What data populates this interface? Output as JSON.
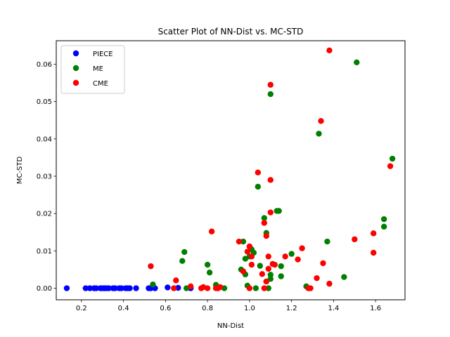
{
  "chart_data": {
    "type": "scatter",
    "title": "Scatter Plot of NN-Dist vs. MC-STD",
    "xlabel": "NN-Dist",
    "ylabel": "MC-STD",
    "xlim": [
      0.08,
      1.74
    ],
    "ylim": [
      -0.0031,
      0.0663
    ],
    "xticks": [
      0.2,
      0.4,
      0.6,
      0.8,
      1.0,
      1.2,
      1.4,
      1.6
    ],
    "xtick_labels": [
      "0.2",
      "0.4",
      "0.6",
      "0.8",
      "1.0",
      "1.2",
      "1.4",
      "1.6"
    ],
    "yticks": [
      0.0,
      0.01,
      0.02,
      0.03,
      0.04,
      0.05,
      0.06
    ],
    "ytick_labels": [
      "0.00",
      "0.01",
      "0.02",
      "0.03",
      "0.04",
      "0.05",
      "0.06"
    ],
    "grid": false,
    "legend_position": "top-left",
    "series": [
      {
        "name": "PIECE",
        "color": "#0000ff",
        "points": [
          [
            0.13,
            0.0
          ],
          [
            0.22,
            0.0
          ],
          [
            0.24,
            0.0
          ],
          [
            0.26,
            0.0
          ],
          [
            0.27,
            0.0
          ],
          [
            0.29,
            0.0
          ],
          [
            0.3,
            0.0
          ],
          [
            0.31,
            0.0
          ],
          [
            0.32,
            0.0
          ],
          [
            0.33,
            0.0
          ],
          [
            0.35,
            0.0
          ],
          [
            0.36,
            0.0
          ],
          [
            0.38,
            0.0
          ],
          [
            0.39,
            0.0
          ],
          [
            0.41,
            0.0
          ],
          [
            0.42,
            0.0
          ],
          [
            0.43,
            0.0
          ],
          [
            0.46,
            0.0
          ],
          [
            0.52,
            0.0
          ],
          [
            0.53,
            0.0
          ],
          [
            0.55,
            0.0
          ],
          [
            0.61,
            0.0002
          ],
          [
            0.66,
            0.0001
          ],
          [
            0.72,
            0.0
          ]
        ]
      },
      {
        "name": "ME",
        "color": "#008000",
        "points": [
          [
            0.54,
            0.001
          ],
          [
            0.68,
            0.0073
          ],
          [
            0.69,
            0.0097
          ],
          [
            0.7,
            0.0
          ],
          [
            0.8,
            0.0063
          ],
          [
            0.81,
            0.0042
          ],
          [
            0.84,
            0.0009
          ],
          [
            0.85,
            0.0
          ],
          [
            0.88,
            0.0
          ],
          [
            0.96,
            0.005
          ],
          [
            0.97,
            0.0125
          ],
          [
            0.98,
            0.0037
          ],
          [
            0.98,
            0.0079
          ],
          [
            0.99,
            0.0007
          ],
          [
            1.0,
            0.0085
          ],
          [
            1.01,
            0.0104
          ],
          [
            1.02,
            0.0095
          ],
          [
            1.03,
            0.0
          ],
          [
            1.04,
            0.0272
          ],
          [
            1.05,
            0.006
          ],
          [
            1.07,
            0.0188
          ],
          [
            1.08,
            0.0148
          ],
          [
            1.08,
            0.0018
          ],
          [
            1.09,
            0.0
          ],
          [
            1.1,
            0.0025
          ],
          [
            1.1,
            0.0036
          ],
          [
            1.1,
            0.052
          ],
          [
            1.13,
            0.0207
          ],
          [
            1.14,
            0.0207
          ],
          [
            1.15,
            0.0059
          ],
          [
            1.15,
            0.0032
          ],
          [
            1.2,
            0.0092
          ],
          [
            1.27,
            0.0005
          ],
          [
            1.33,
            0.0414
          ],
          [
            1.37,
            0.0125
          ],
          [
            1.45,
            0.003
          ],
          [
            1.51,
            0.0605
          ],
          [
            1.64,
            0.0185
          ],
          [
            1.64,
            0.0165
          ],
          [
            1.68,
            0.0347
          ]
        ]
      },
      {
        "name": "CME",
        "color": "#ff0000",
        "points": [
          [
            0.53,
            0.0059
          ],
          [
            0.64,
            0.0
          ],
          [
            0.65,
            0.0021
          ],
          [
            0.72,
            0.0005
          ],
          [
            0.77,
            0.0
          ],
          [
            0.78,
            0.0003
          ],
          [
            0.8,
            0.0
          ],
          [
            0.82,
            0.0152
          ],
          [
            0.84,
            0.0
          ],
          [
            0.85,
            0.0
          ],
          [
            0.86,
            0.0003
          ],
          [
            0.95,
            0.0125
          ],
          [
            0.97,
            0.0045
          ],
          [
            0.99,
            0.0098
          ],
          [
            1.0,
            0.0112
          ],
          [
            1.0,
            0.0
          ],
          [
            1.01,
            0.0085
          ],
          [
            1.01,
            0.0063
          ],
          [
            1.04,
            0.031
          ],
          [
            1.06,
            0.0038
          ],
          [
            1.07,
            0.0
          ],
          [
            1.07,
            0.0175
          ],
          [
            1.08,
            0.014
          ],
          [
            1.08,
            0.0018
          ],
          [
            1.09,
            0.0085
          ],
          [
            1.09,
            0.0052
          ],
          [
            1.1,
            0.0545
          ],
          [
            1.1,
            0.0203
          ],
          [
            1.1,
            0.029
          ],
          [
            1.11,
            0.0065
          ],
          [
            1.12,
            0.0063
          ],
          [
            1.17,
            0.0085
          ],
          [
            1.23,
            0.0077
          ],
          [
            1.25,
            0.0107
          ],
          [
            1.28,
            0.0
          ],
          [
            1.29,
            0.0
          ],
          [
            1.32,
            0.0027
          ],
          [
            1.34,
            0.0448
          ],
          [
            1.35,
            0.0067
          ],
          [
            1.38,
            0.0637
          ],
          [
            1.38,
            0.0012
          ],
          [
            1.5,
            0.0131
          ],
          [
            1.59,
            0.0147
          ],
          [
            1.59,
            0.0095
          ],
          [
            1.67,
            0.0327
          ]
        ]
      }
    ]
  }
}
